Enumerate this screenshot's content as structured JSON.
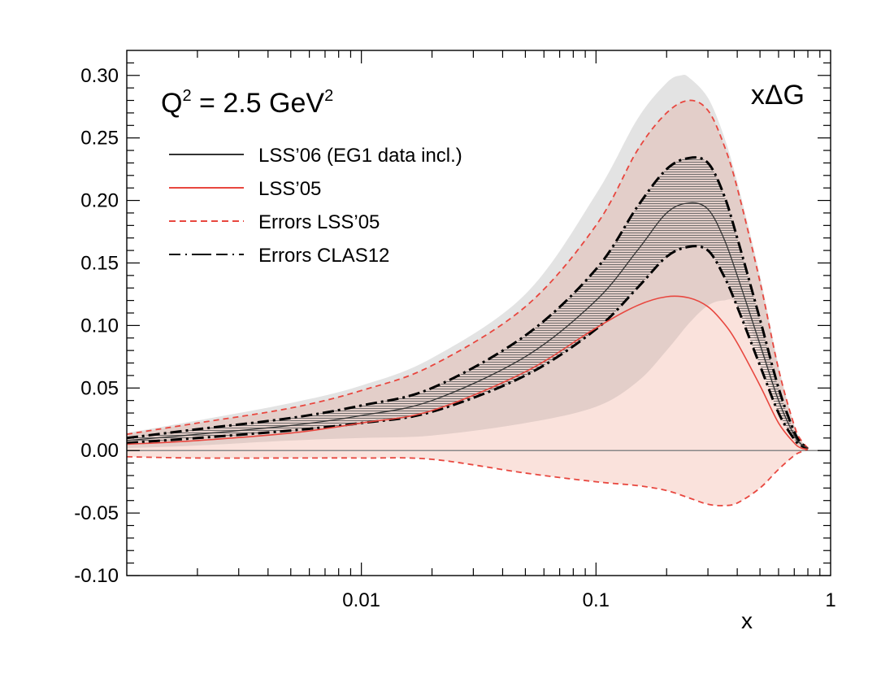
{
  "chart_data": {
    "type": "line",
    "title": "",
    "xlabel": "x",
    "ylabel": "",
    "xscale": "log",
    "xlim": [
      0.001,
      1
    ],
    "ylim": [
      -0.1,
      0.32
    ],
    "xticks": [
      {
        "value": 0.01,
        "label": "0.01"
      },
      {
        "value": 0.1,
        "label": "0.1"
      },
      {
        "value": 1,
        "label": "1"
      }
    ],
    "yticks": [
      {
        "value": 0.3,
        "label": "0.30"
      },
      {
        "value": 0.25,
        "label": "0.25"
      },
      {
        "value": 0.2,
        "label": "0.20"
      },
      {
        "value": 0.15,
        "label": "0.15"
      },
      {
        "value": 0.1,
        "label": "0.10"
      },
      {
        "value": 0.05,
        "label": "0.05"
      },
      {
        "value": 0.0,
        "label": "0.00"
      },
      {
        "value": -0.05,
        "label": "-0.05"
      },
      {
        "value": -0.1,
        "label": "-0.10"
      }
    ],
    "annotations": {
      "q2_prefix": "Q",
      "q2_sup": "2",
      "q2_mid": " = 2.5 GeV",
      "q2_sup2": "2",
      "function_label": "xΔG"
    },
    "legend": [
      {
        "key": "lss06",
        "label": "LSS’06 (EG1 data incl.)",
        "color": "#333333",
        "style": "solid"
      },
      {
        "key": "lss05",
        "label": "LSS’05",
        "color": "#e8473f",
        "style": "solid"
      },
      {
        "key": "err05",
        "label": "Errors LSS’05",
        "color": "#e8473f",
        "style": "dashed"
      },
      {
        "key": "clas12",
        "label": "Errors CLAS12",
        "color": "#000000",
        "style": "dashdot"
      }
    ],
    "colors": {
      "grey_band": "#e3e3e3",
      "lss05_band": "#f9ddd6",
      "overlap_band": "#dcc8c4",
      "clas_hatch": "#555555",
      "zero_line": "#888888"
    },
    "series": [
      {
        "name": "LSS’06 (EG1 data incl.)",
        "key": "lss06",
        "x": [
          0.001,
          0.002,
          0.005,
          0.01,
          0.02,
          0.05,
          0.1,
          0.15,
          0.2,
          0.25,
          0.3,
          0.35,
          0.4,
          0.5,
          0.6,
          0.7,
          0.75,
          0.8
        ],
        "y": [
          0.008,
          0.013,
          0.02,
          0.028,
          0.04,
          0.075,
          0.12,
          0.16,
          0.19,
          0.198,
          0.193,
          0.17,
          0.14,
          0.085,
          0.04,
          0.012,
          0.005,
          0.002
        ]
      },
      {
        "name": "LSS’05",
        "key": "lss05",
        "x": [
          0.001,
          0.002,
          0.005,
          0.01,
          0.02,
          0.05,
          0.1,
          0.15,
          0.2,
          0.25,
          0.3,
          0.35,
          0.4,
          0.5,
          0.6,
          0.7,
          0.75,
          0.8
        ],
        "y": [
          0.005,
          0.008,
          0.014,
          0.022,
          0.032,
          0.063,
          0.098,
          0.116,
          0.123,
          0.122,
          0.115,
          0.102,
          0.086,
          0.052,
          0.022,
          0.006,
          0.002,
          0.001
        ]
      },
      {
        "name": "Errors LSS’05 (upper)",
        "key": "err05_upper",
        "x": [
          0.001,
          0.002,
          0.005,
          0.01,
          0.02,
          0.05,
          0.1,
          0.15,
          0.2,
          0.25,
          0.3,
          0.35,
          0.4,
          0.5,
          0.6,
          0.7,
          0.75,
          0.8
        ],
        "y": [
          0.013,
          0.022,
          0.034,
          0.048,
          0.068,
          0.115,
          0.18,
          0.24,
          0.27,
          0.28,
          0.272,
          0.245,
          0.21,
          0.135,
          0.065,
          0.02,
          0.008,
          0.002
        ]
      },
      {
        "name": "Errors LSS’05 (lower)",
        "key": "err05_lower",
        "x": [
          0.001,
          0.002,
          0.005,
          0.01,
          0.02,
          0.05,
          0.1,
          0.15,
          0.2,
          0.25,
          0.3,
          0.35,
          0.4,
          0.5,
          0.6,
          0.7,
          0.75,
          0.8
        ],
        "y": [
          -0.005,
          -0.006,
          -0.006,
          -0.006,
          -0.007,
          -0.018,
          -0.025,
          -0.028,
          -0.032,
          -0.038,
          -0.043,
          -0.044,
          -0.042,
          -0.03,
          -0.015,
          -0.004,
          -0.001,
          0.001
        ]
      },
      {
        "name": "Errors CLAS12 (upper)",
        "key": "clas12_upper",
        "x": [
          0.001,
          0.002,
          0.005,
          0.01,
          0.02,
          0.05,
          0.1,
          0.15,
          0.2,
          0.25,
          0.3,
          0.35,
          0.4,
          0.5,
          0.6,
          0.7,
          0.75,
          0.8
        ],
        "y": [
          0.01,
          0.017,
          0.026,
          0.036,
          0.05,
          0.092,
          0.145,
          0.195,
          0.225,
          0.234,
          0.23,
          0.205,
          0.17,
          0.105,
          0.05,
          0.015,
          0.006,
          0.002
        ]
      },
      {
        "name": "Errors CLAS12 (lower)",
        "key": "clas12_lower",
        "x": [
          0.001,
          0.002,
          0.005,
          0.01,
          0.02,
          0.05,
          0.1,
          0.15,
          0.2,
          0.25,
          0.3,
          0.35,
          0.4,
          0.5,
          0.6,
          0.7,
          0.75,
          0.8
        ],
        "y": [
          0.006,
          0.01,
          0.016,
          0.022,
          0.031,
          0.06,
          0.097,
          0.13,
          0.155,
          0.163,
          0.16,
          0.14,
          0.115,
          0.068,
          0.03,
          0.009,
          0.004,
          0.001
        ]
      },
      {
        "name": "Grey band (upper)",
        "key": "grey_upper",
        "x": [
          0.001,
          0.002,
          0.005,
          0.01,
          0.02,
          0.05,
          0.1,
          0.15,
          0.2,
          0.23,
          0.25,
          0.3,
          0.35,
          0.4,
          0.5,
          0.6,
          0.7,
          0.75,
          0.8
        ],
        "y": [
          0.014,
          0.024,
          0.038,
          0.052,
          0.074,
          0.125,
          0.205,
          0.265,
          0.294,
          0.3,
          0.298,
          0.282,
          0.252,
          0.215,
          0.14,
          0.068,
          0.02,
          0.008,
          0.002
        ]
      },
      {
        "name": "Grey band (lower)",
        "key": "grey_lower",
        "x": [
          0.001,
          0.002,
          0.005,
          0.01,
          0.02,
          0.05,
          0.1,
          0.15,
          0.2,
          0.25,
          0.3,
          0.35,
          0.4,
          0.5,
          0.6,
          0.7,
          0.75,
          0.8
        ],
        "y": [
          0.002,
          0.004,
          0.008,
          0.01,
          0.012,
          0.022,
          0.035,
          0.055,
          0.08,
          0.102,
          0.116,
          0.12,
          0.117,
          0.08,
          0.035,
          0.008,
          0.003,
          0.001
        ]
      }
    ]
  }
}
